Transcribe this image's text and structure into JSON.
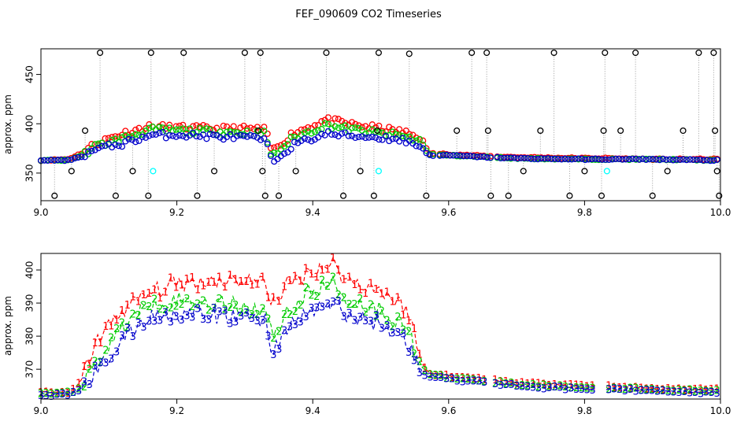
{
  "chart_data": [
    {
      "type": "scatter",
      "title": "FEF_090609  CO2 Timeseries",
      "xlabel": "",
      "ylabel": "approx. ppm",
      "xlim": [
        9.0,
        10.0
      ],
      "ylim": [
        322,
        476
      ],
      "xticks": [
        "9.0",
        "9.2",
        "9.4",
        "9.6",
        "9.8",
        "10.0"
      ],
      "xtick_values": [
        9.0,
        9.2,
        9.4,
        9.6,
        9.8,
        10.0
      ],
      "yticks": [
        "350",
        "400",
        "450"
      ],
      "ytick_values": [
        350,
        400,
        450
      ],
      "colors": {
        "red": "#ff0000",
        "green": "#00cc00",
        "blue": "#0000cc",
        "black": "#000000",
        "cyan": "#00ffff",
        "gray": "#999999"
      },
      "marker": "open-circle",
      "profile": {
        "x": [
          9.0,
          9.04,
          9.06,
          9.08,
          9.12,
          9.16,
          9.2,
          9.26,
          9.3,
          9.33,
          9.34,
          9.37,
          9.42,
          9.45,
          9.5,
          9.53,
          9.56,
          9.57,
          9.6,
          9.66,
          9.7,
          9.8,
          9.83,
          9.9,
          9.99
        ],
        "series": [
          {
            "values": [
              363,
              363,
              367,
              374,
              380,
              388,
              389,
              387,
              386,
              384,
              361,
              378,
              390,
              388,
              386,
              384,
              377,
              368,
              368,
              366,
              365,
              364,
              364,
              364,
              363
            ]
          },
          {
            "values": [
              363,
              363,
              368,
              377,
              385,
              394,
              393,
              392,
              391,
              390,
              366,
              385,
              399,
              395,
              390,
              388,
              382,
              369,
              368,
              366,
              365,
              364,
              364,
              364,
              363
            ]
          },
          {
            "values": [
              363,
              364,
              370,
              380,
              390,
              397,
              396,
              395,
              395,
              394,
              372,
              390,
              404,
              400,
              395,
              392,
              386,
              370,
              369,
              367,
              366,
              365,
              365,
              364,
              364
            ]
          }
        ]
      },
      "outlier_points": [
        {
          "x": 9.02,
          "y": 327
        },
        {
          "x": 9.045,
          "y": 352
        },
        {
          "x": 9.065,
          "y": 393
        },
        {
          "x": 9.087,
          "y": 472
        },
        {
          "x": 9.11,
          "y": 327
        },
        {
          "x": 9.135,
          "y": 352
        },
        {
          "x": 9.158,
          "y": 327
        },
        {
          "x": 9.162,
          "y": 472
        },
        {
          "x": 9.21,
          "y": 472
        },
        {
          "x": 9.23,
          "y": 327
        },
        {
          "x": 9.255,
          "y": 352
        },
        {
          "x": 9.3,
          "y": 472
        },
        {
          "x": 9.32,
          "y": 393
        },
        {
          "x": 9.323,
          "y": 472
        },
        {
          "x": 9.326,
          "y": 352
        },
        {
          "x": 9.33,
          "y": 327
        },
        {
          "x": 9.35,
          "y": 327
        },
        {
          "x": 9.375,
          "y": 352
        },
        {
          "x": 9.42,
          "y": 472
        },
        {
          "x": 9.445,
          "y": 327
        },
        {
          "x": 9.47,
          "y": 352
        },
        {
          "x": 9.49,
          "y": 327
        },
        {
          "x": 9.495,
          "y": 393
        },
        {
          "x": 9.497,
          "y": 472
        },
        {
          "x": 9.542,
          "y": 471
        },
        {
          "x": 9.567,
          "y": 327
        },
        {
          "x": 9.612,
          "y": 393
        },
        {
          "x": 9.634,
          "y": 472
        },
        {
          "x": 9.656,
          "y": 472
        },
        {
          "x": 9.658,
          "y": 393
        },
        {
          "x": 9.662,
          "y": 327
        },
        {
          "x": 9.688,
          "y": 327
        },
        {
          "x": 9.71,
          "y": 352
        },
        {
          "x": 9.735,
          "y": 393
        },
        {
          "x": 9.755,
          "y": 472
        },
        {
          "x": 9.778,
          "y": 327
        },
        {
          "x": 9.8,
          "y": 352
        },
        {
          "x": 9.825,
          "y": 327
        },
        {
          "x": 9.828,
          "y": 393
        },
        {
          "x": 9.83,
          "y": 472
        },
        {
          "x": 9.853,
          "y": 393
        },
        {
          "x": 9.875,
          "y": 472
        },
        {
          "x": 9.9,
          "y": 327
        },
        {
          "x": 9.922,
          "y": 352
        },
        {
          "x": 9.945,
          "y": 393
        },
        {
          "x": 9.968,
          "y": 472
        },
        {
          "x": 9.99,
          "y": 472
        },
        {
          "x": 9.992,
          "y": 393
        },
        {
          "x": 9.995,
          "y": 352
        },
        {
          "x": 9.998,
          "y": 327
        }
      ],
      "cyan_points": [
        {
          "x": 9.165,
          "y": 352
        },
        {
          "x": 9.497,
          "y": 352
        },
        {
          "x": 9.833,
          "y": 352
        }
      ]
    },
    {
      "type": "line",
      "title": "",
      "xlabel": "",
      "ylabel": "approx. ppm",
      "xlim": [
        9.0,
        10.0
      ],
      "ylim": [
        361,
        405
      ],
      "xticks": [
        "9.0",
        "9.2",
        "9.4",
        "9.6",
        "9.8",
        "10.0"
      ],
      "xtick_values": [
        9.0,
        9.2,
        9.4,
        9.6,
        9.8,
        10.0
      ],
      "yticks": [
        "370",
        "380",
        "390",
        "400"
      ],
      "ytick_values": [
        370,
        380,
        390,
        400
      ],
      "series": [
        {
          "marker": "1",
          "color": "#ff0000"
        },
        {
          "marker": "2",
          "color": "#00cc00"
        },
        {
          "marker": "3",
          "color": "#0000cc"
        }
      ],
      "profile": {
        "x": [
          9.0,
          9.04,
          9.05,
          9.06,
          9.08,
          9.12,
          9.16,
          9.2,
          9.26,
          9.3,
          9.33,
          9.34,
          9.36,
          9.4,
          9.43,
          9.45,
          9.5,
          9.54,
          9.56,
          9.57,
          9.6,
          9.66,
          9.7,
          9.8,
          9.83,
          9.9,
          9.99
        ],
        "series": [
          {
            "values": [
              363,
              363,
              364,
              367,
              378,
              388,
              393,
              396,
              397,
              397,
              396,
              390,
              395,
              400,
              402,
              397,
              394,
              388,
              372,
              369,
              368,
              367,
              366,
              365,
              365,
              364,
              364
            ]
          },
          {
            "values": [
              362.5,
              363,
              363.5,
              365,
              372,
              383,
              390,
              391,
              390,
              389,
              388,
              380,
              387,
              394,
              396,
              391,
              388,
              382,
              371,
              368.5,
              367.5,
              366.5,
              365.5,
              364.5,
              364.5,
              364,
              363.5
            ]
          },
          {
            "values": [
              362,
              362.5,
              363,
              364,
              369,
              379,
              386,
              387,
              386,
              386,
              385,
              375,
              382,
              388,
              390,
              386,
              384,
              378,
              369,
              368,
              367,
              366,
              365,
              364,
              364,
              363.5,
              363
            ]
          }
        ]
      }
    }
  ]
}
